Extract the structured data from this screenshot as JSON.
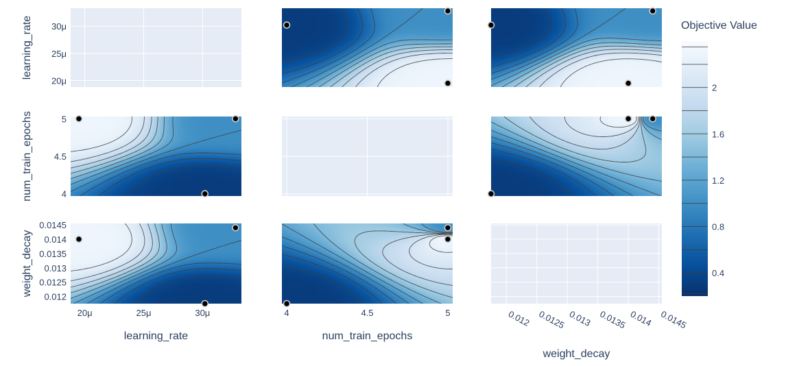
{
  "chart_data": {
    "type": "contour",
    "title": "",
    "colorbar": {
      "title": "Objective Value",
      "range": [
        0.2,
        2.4
      ],
      "ticks": [
        "0.4",
        "0.8",
        "1.2",
        "1.6",
        "2"
      ],
      "colorscale": [
        "#08306b",
        "#08519c",
        "#2171b5",
        "#4292c6",
        "#6baed6",
        "#9ecae1",
        "#c6dbef",
        "#deebf7",
        "#f7fbff"
      ]
    },
    "params": [
      {
        "name": "learning_rate",
        "axis_label": "learning_rate",
        "range": [
          1.88e-05,
          3.33e-05
        ],
        "x_ticks": [
          {
            "value": 2e-05,
            "label": "20μ"
          },
          {
            "value": 2.5e-05,
            "label": "25μ"
          },
          {
            "value": 3e-05,
            "label": "30μ"
          }
        ],
        "y_ticks": [
          {
            "value": 2e-05,
            "label": "20μ"
          },
          {
            "value": 2.5e-05,
            "label": "25μ"
          },
          {
            "value": 3e-05,
            "label": "30μ"
          }
        ]
      },
      {
        "name": "num_train_epochs",
        "axis_label": "num_train_epochs",
        "range": [
          3.97,
          5.03
        ],
        "x_ticks": [
          {
            "value": 4,
            "label": "4"
          },
          {
            "value": 4.5,
            "label": "4.5"
          },
          {
            "value": 5,
            "label": "5"
          }
        ],
        "y_ticks": [
          {
            "value": 4,
            "label": "4"
          },
          {
            "value": 4.5,
            "label": "4.5"
          },
          {
            "value": 5,
            "label": "5"
          }
        ]
      },
      {
        "name": "weight_decay",
        "axis_label": "weight_decay",
        "range": [
          0.01175,
          0.01455
        ],
        "x_ticks": [
          {
            "value": 0.012,
            "label": "0.012"
          },
          {
            "value": 0.0125,
            "label": "0.0125"
          },
          {
            "value": 0.013,
            "label": "0.013"
          },
          {
            "value": 0.0135,
            "label": "0.0135"
          },
          {
            "value": 0.014,
            "label": "0.014"
          },
          {
            "value": 0.0145,
            "label": "0.0145"
          }
        ],
        "y_ticks": [
          {
            "value": 0.012,
            "label": "0.012"
          },
          {
            "value": 0.0125,
            "label": "0.0125"
          },
          {
            "value": 0.013,
            "label": "0.013"
          },
          {
            "value": 0.0135,
            "label": "0.0135"
          },
          {
            "value": 0.014,
            "label": "0.014"
          },
          {
            "value": 0.0145,
            "label": "0.0145"
          }
        ]
      }
    ],
    "trials": [
      {
        "learning_rate": 3.02e-05,
        "num_train_epochs": 4,
        "weight_decay": 0.01175
      },
      {
        "learning_rate": 1.95e-05,
        "num_train_epochs": 5,
        "weight_decay": 0.014
      },
      {
        "learning_rate": 3.28e-05,
        "num_train_epochs": 5,
        "weight_decay": 0.0144
      }
    ]
  }
}
